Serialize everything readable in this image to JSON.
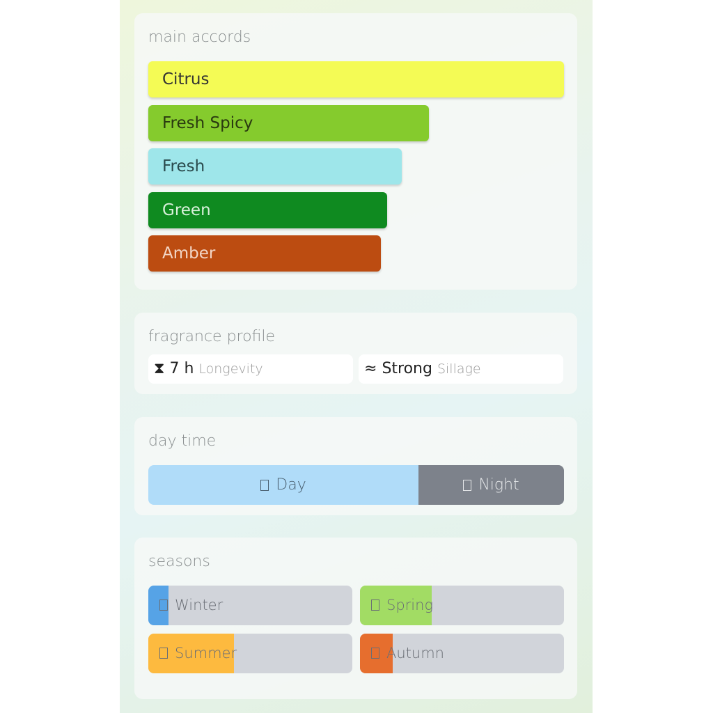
{
  "main_accords": {
    "title": "main accords",
    "items": [
      {
        "label": "Citrus",
        "strength_pct": 100,
        "color": "#f4fb55",
        "text_color": "#333333"
      },
      {
        "label": "Fresh Spicy",
        "strength_pct": 67.5,
        "color": "#85cb2d",
        "text_color": "#2a3a10"
      },
      {
        "label": "Fresh",
        "strength_pct": 61,
        "color": "#9ee6ea",
        "text_color": "#2a4a4c"
      },
      {
        "label": "Green",
        "strength_pct": 57.5,
        "color": "#0f8a20",
        "text_color": "#d8f0da"
      },
      {
        "label": "Amber",
        "strength_pct": 56,
        "color": "#bc4c11",
        "text_color": "#f3d6c6"
      }
    ]
  },
  "fragrance_profile": {
    "title": "fragrance profile",
    "longevity": {
      "icon": "hourglass-icon",
      "glyph": "⧗",
      "value": "7 h",
      "label": "Longevity"
    },
    "sillage": {
      "icon": "waves-icon",
      "glyph": "≈",
      "value": "Strong",
      "label": "Sillage"
    }
  },
  "day_time": {
    "title": "day time",
    "day": {
      "label": "Day",
      "share_pct": 65,
      "color": "#b0dcf9"
    },
    "night": {
      "label": "Night",
      "color": "#7d828b"
    }
  },
  "seasons": {
    "title": "seasons",
    "items": [
      {
        "label": "Winter",
        "pct": 10,
        "color": "#56a3e6"
      },
      {
        "label": "Spring",
        "pct": 35,
        "color": "#a2dc64"
      },
      {
        "label": "Summer",
        "pct": 42,
        "color": "#fdba3f"
      },
      {
        "label": "Autumn",
        "pct": 16,
        "color": "#e66e2e"
      }
    ]
  }
}
